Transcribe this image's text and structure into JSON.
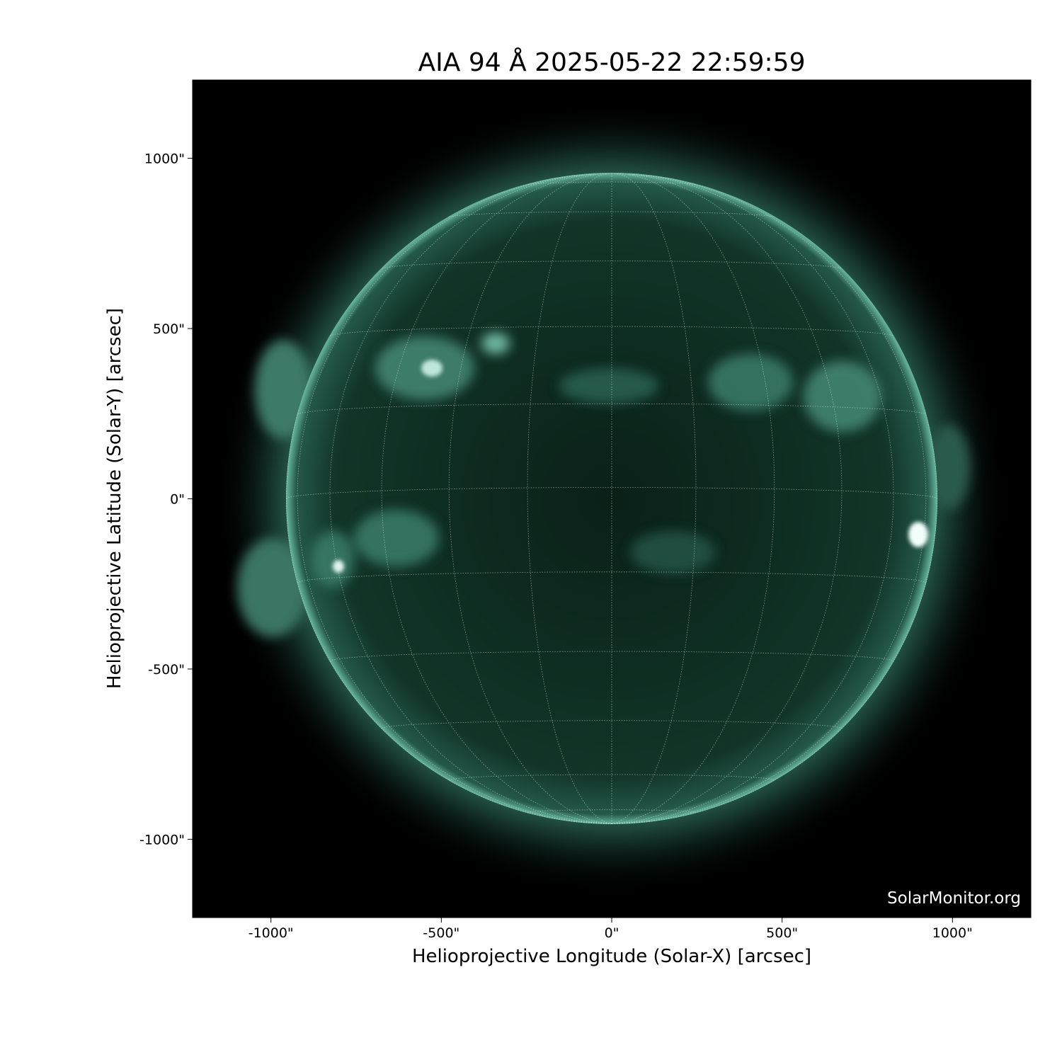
{
  "title": "AIA 94 Å 2025-05-22 22:59:59",
  "credit": "SolarMonitor.org",
  "colors": {
    "colormap": "sdoaia94",
    "limb_tint": "#5fb8a0",
    "background": "#000000"
  },
  "chart_data": {
    "type": "image",
    "title": "AIA 94 Å 2025-05-22 22:59:59",
    "xlabel": "Helioprojective Longitude (Solar-X) [arcsec]",
    "ylabel": "Helioprojective Latitude (Solar-Y) [arcsec]",
    "xlim": [
      -1230,
      1230
    ],
    "ylim": [
      -1230,
      1230
    ],
    "xticks": [
      -1000,
      -500,
      0,
      500,
      1000
    ],
    "yticks": [
      -1000,
      -500,
      0,
      500,
      1000
    ],
    "xtick_labels": [
      "-1000\"",
      "-500\"",
      "0\"",
      "500\"",
      "1000\""
    ],
    "ytick_labels": [
      "-1000\"",
      "-500\"",
      "0\"",
      "500\"",
      "1000\""
    ],
    "grid": "heliographic, 15° spacing",
    "solar_radius_arcsec": 955
  }
}
